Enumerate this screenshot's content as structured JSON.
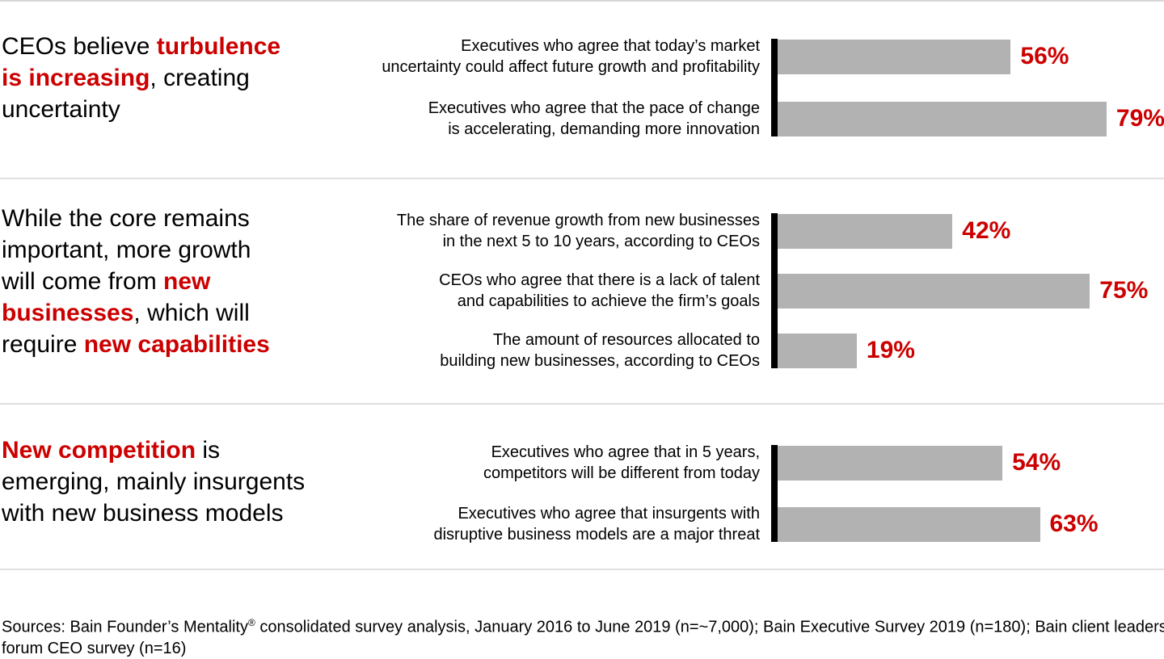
{
  "colors": {
    "accent_red": "#cc0000",
    "bar_gray": "#b2b2b2",
    "divider_gray": "#e0e0e0",
    "axis_black": "#000000"
  },
  "sections": [
    {
      "headline": [
        {
          "text": "CEOs believe ",
          "em": false
        },
        {
          "text": "turbulence\nis increasing",
          "em": true
        },
        {
          "text": ", creating\nuncertainty",
          "em": false
        }
      ],
      "rows": [
        {
          "label": "Executives who agree that today’s market\nuncertainty could affect future growth and profitability",
          "value": 56,
          "display": "56%"
        },
        {
          "label": "Executives who agree that the pace of change\nis accelerating, demanding more innovation",
          "value": 79,
          "display": "79%"
        }
      ]
    },
    {
      "headline": [
        {
          "text": "While the core remains\nimportant, more growth\nwill come from ",
          "em": false
        },
        {
          "text": "new\nbusinesses",
          "em": true
        },
        {
          "text": ", which will\nrequire ",
          "em": false
        },
        {
          "text": "new capabilities",
          "em": true
        }
      ],
      "rows": [
        {
          "label": "The share of revenue growth from new businesses\nin the next 5 to 10 years, according to CEOs",
          "value": 42,
          "display": "42%"
        },
        {
          "label": "CEOs who agree that there is a lack of talent\nand capabilities to achieve the firm’s goals",
          "value": 75,
          "display": "75%"
        },
        {
          "label": "The amount of resources allocated to\nbuilding new businesses, according to CEOs",
          "value": 19,
          "display": "19%"
        }
      ]
    },
    {
      "headline": [
        {
          "text": "New competition",
          "em": true
        },
        {
          "text": " is\nemerging, mainly insurgents\nwith new business models",
          "em": false
        }
      ],
      "rows": [
        {
          "label": "Executives who agree that in 5 years,\ncompetitors will be different from today",
          "value": 54,
          "display": "54%"
        },
        {
          "label": "Executives who agree that insurgents with\ndisruptive business models are a major threat",
          "value": 63,
          "display": "63%"
        }
      ]
    }
  ],
  "footer": {
    "before_reg": "Sources: Bain Founder’s Mentality",
    "reg": "®",
    "after_reg": " consolidated survey analysis, January 2016 to June 2019 (n=~7,000); Bain Executive Survey 2019 (n=180); Bain client leaders\nforum CEO survey (n=16)"
  },
  "chart_data": [
    {
      "type": "bar",
      "orientation": "horizontal",
      "title": "CEOs believe turbulence is increasing, creating uncertainty",
      "categories": [
        "Executives who agree that today’s market uncertainty could affect future growth and profitability",
        "Executives who agree that the pace of change is accelerating, demanding more innovation"
      ],
      "values": [
        56,
        79
      ],
      "unit": "%",
      "xlim": [
        0,
        100
      ],
      "grid": false,
      "legend": "none",
      "bar_color": "#b2b2b2",
      "value_label_color": "#cc0000"
    },
    {
      "type": "bar",
      "orientation": "horizontal",
      "title": "While the core remains important, more growth will come from new businesses, which will require new capabilities",
      "categories": [
        "The share of revenue growth from new businesses in the next 5 to 10 years, according to CEOs",
        "CEOs who agree that there is a lack of talent and capabilities to achieve the firm’s goals",
        "The amount of resources allocated to building new businesses, according to CEOs"
      ],
      "values": [
        42,
        75,
        19
      ],
      "unit": "%",
      "xlim": [
        0,
        100
      ],
      "grid": false,
      "legend": "none",
      "bar_color": "#b2b2b2",
      "value_label_color": "#cc0000"
    },
    {
      "type": "bar",
      "orientation": "horizontal",
      "title": "New competition is emerging, mainly insurgents with new business models",
      "categories": [
        "Executives who agree that in 5 years, competitors will be different from today",
        "Executives who agree that insurgents with disruptive business models are a major threat"
      ],
      "values": [
        54,
        63
      ],
      "unit": "%",
      "xlim": [
        0,
        100
      ],
      "grid": false,
      "legend": "none",
      "bar_color": "#b2b2b2",
      "value_label_color": "#cc0000"
    }
  ]
}
